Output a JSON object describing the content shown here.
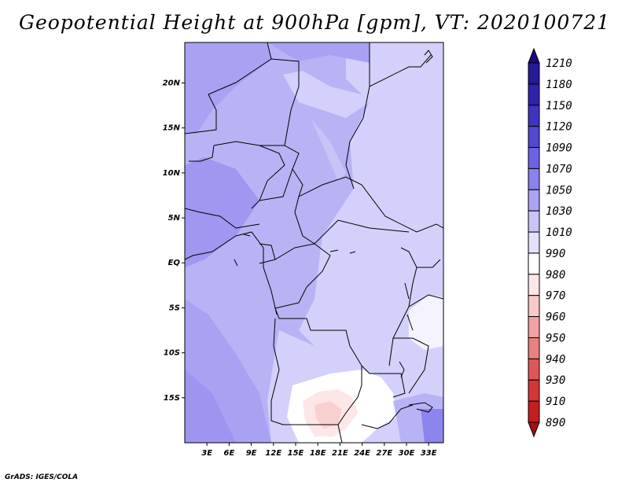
{
  "title": "Geopotential Height at 900hPa [gpm], VT: 2020100721",
  "credit": "GrADS: IGES/COLA",
  "map": {
    "variable": "Geopotential Height",
    "level": "900hPa",
    "units": "gpm",
    "valid_time": "2020100721",
    "lat_ticks": [
      "20N",
      "15N",
      "10N",
      "5N",
      "EQ",
      "5S",
      "10S",
      "15S"
    ],
    "lat_values": [
      20,
      15,
      10,
      5,
      0,
      -5,
      -10,
      -15
    ],
    "lon_ticks": [
      "3E",
      "6E",
      "9E",
      "12E",
      "15E",
      "18E",
      "21E",
      "24E",
      "27E",
      "30E",
      "33E"
    ],
    "lon_values": [
      3,
      6,
      9,
      12,
      15,
      18,
      21,
      24,
      27,
      30,
      33
    ],
    "lon_range": [
      0,
      35
    ],
    "lat_range": [
      -20,
      24.5
    ]
  },
  "colorbar": {
    "labels": [
      "1210",
      "1180",
      "1150",
      "1120",
      "1090",
      "1070",
      "1050",
      "1030",
      "1010",
      "990",
      "980",
      "970",
      "960",
      "950",
      "940",
      "930",
      "910",
      "890"
    ],
    "colors": [
      "#1a0b80",
      "#241a9a",
      "#3022ae",
      "#3f34c0",
      "#5248d2",
      "#6c62e4",
      "#8a82ee",
      "#aaa3f5",
      "#c8c4f8",
      "#e2e0fc",
      "#ffffff",
      "#fde6e6",
      "#f9c8c8",
      "#f3a2a2",
      "#eb8080",
      "#e05656",
      "#d43636",
      "#c41e1e",
      "#a80e0e"
    ]
  }
}
